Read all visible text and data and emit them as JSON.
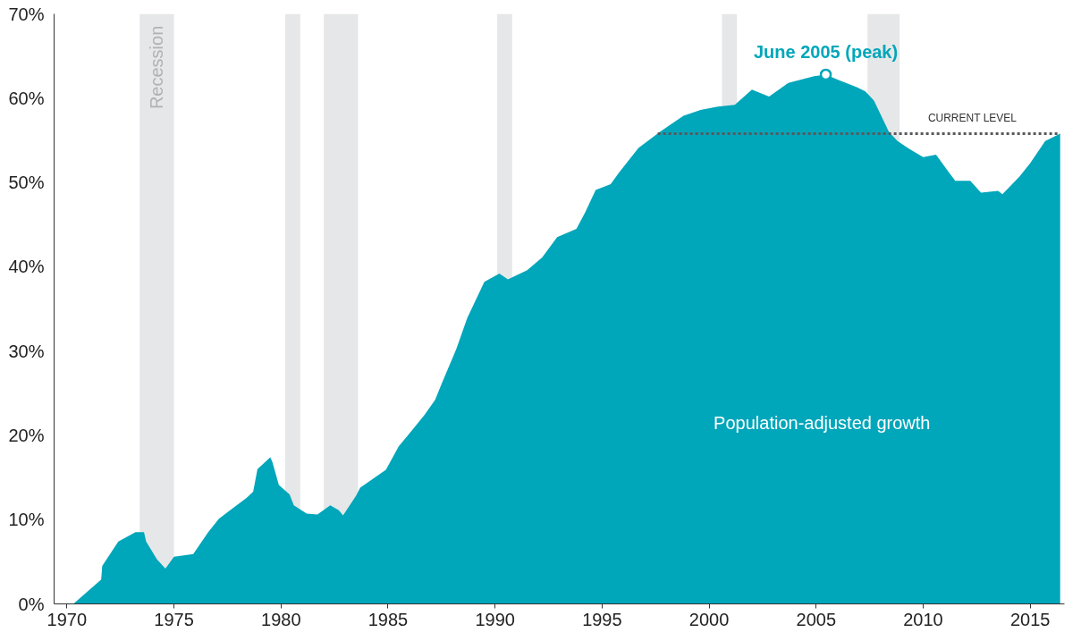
{
  "chart_data": {
    "type": "area",
    "xlim": [
      1969.4,
      2016.6
    ],
    "ylim": [
      0,
      70
    ],
    "xticks": [
      1970,
      1975,
      1980,
      1985,
      1990,
      1995,
      2000,
      2005,
      2010,
      2015
    ],
    "yticks": [
      {
        "value": 0,
        "label": "0%"
      },
      {
        "value": 10,
        "label": "10%"
      },
      {
        "value": 20,
        "label": "20%"
      },
      {
        "value": 30,
        "label": "30%"
      },
      {
        "value": 40,
        "label": "40%"
      },
      {
        "value": 50,
        "label": "50%"
      },
      {
        "value": 60,
        "label": "60%"
      },
      {
        "value": 70,
        "label": "70%"
      }
    ],
    "grid": false,
    "series": [
      {
        "name": "Population-adjusted growth",
        "color": "#00a6ba",
        "x": [
          1970.3,
          1971.6,
          1971.65,
          1972.4,
          1973.2,
          1973.6,
          1973.7,
          1974.2,
          1974.6,
          1975.0,
          1975.9,
          1976.6,
          1977.1,
          1978.4,
          1978.7,
          1978.9,
          1979.5,
          1979.6,
          1979.9,
          1980.4,
          1980.6,
          1981.2,
          1981.7,
          1982.3,
          1982.7,
          1982.9,
          1983.5,
          1983.7,
          1984.9,
          1985.5,
          1985.9,
          1986.7,
          1987.2,
          1987.5,
          1988.2,
          1988.7,
          1989.5,
          1990.2,
          1990.6,
          1991.5,
          1992.2,
          1992.9,
          1993.8,
          1994.2,
          1994.7,
          1995.4,
          1995.8,
          1996.7,
          1997.7,
          1998.8,
          1999.6,
          2000.4,
          2001.2,
          2002.0,
          2002.8,
          2003.7,
          2004.9,
          2005.45,
          2006.1,
          2006.9,
          2007.3,
          2007.7,
          2008.4,
          2008.8,
          2009.4,
          2010.0,
          2010.6,
          2011.2,
          2011.5,
          2012.2,
          2012.7,
          2013.5,
          2013.7,
          2014.5,
          2015.0,
          2015.7,
          2016.4
        ],
        "values": [
          0,
          2.9,
          4.5,
          7.4,
          8.5,
          8.5,
          7.4,
          5.3,
          4.2,
          5.6,
          5.9,
          8.5,
          10.1,
          12.6,
          13.3,
          16.0,
          17.4,
          16.8,
          14.1,
          13.0,
          11.7,
          10.7,
          10.6,
          11.7,
          11.1,
          10.5,
          12.8,
          13.8,
          15.9,
          18.7,
          19.9,
          22.4,
          24.2,
          26.1,
          30.3,
          33.9,
          38.2,
          39.2,
          38.5,
          39.6,
          41.1,
          43.5,
          44.5,
          46.4,
          49.1,
          49.8,
          51.2,
          54.1,
          56.0,
          57.9,
          58.6,
          59.0,
          59.2,
          61.0,
          60.2,
          61.8,
          62.6,
          62.8,
          62.1,
          61.3,
          60.8,
          59.7,
          56.0,
          54.9,
          53.9,
          53.0,
          53.3,
          51.2,
          50.2,
          50.2,
          48.8,
          49.0,
          48.6,
          50.7,
          52.3,
          54.9,
          55.8
        ]
      },
      {
        "type": "line",
        "color": "#58595b",
        "line_style": "dotted",
        "x": [
          1997.6,
          2000,
          2005,
          2010,
          2015,
          2016.4
        ],
        "values": [
          55.8,
          55.8,
          55.8,
          55.8,
          55.8,
          55.8
        ]
      }
    ],
    "bands": [
      {
        "axis": "x",
        "from": 1973.4,
        "to": 1975.0,
        "label": "Recession",
        "color": "#e6e7e8"
      },
      {
        "axis": "x",
        "from": 1980.2,
        "to": 1980.9,
        "color": "#e6e7e8"
      },
      {
        "axis": "x",
        "from": 1982.0,
        "to": 1983.6,
        "color": "#e6e7e8"
      },
      {
        "axis": "x",
        "from": 1990.1,
        "to": 1990.8,
        "color": "#e6e7e8"
      },
      {
        "axis": "x",
        "from": 2000.6,
        "to": 2001.3,
        "color": "#e6e7e8"
      },
      {
        "axis": "x",
        "from": 2007.4,
        "to": 2008.9,
        "color": "#e6e7e8"
      }
    ],
    "annotations": [
      {
        "text": "June 2005 (peak)",
        "x": 2005.45,
        "y": 62.8
      },
      {
        "text": "CURRENT LEVEL",
        "x": 2012.3,
        "y": 55.8
      }
    ]
  }
}
